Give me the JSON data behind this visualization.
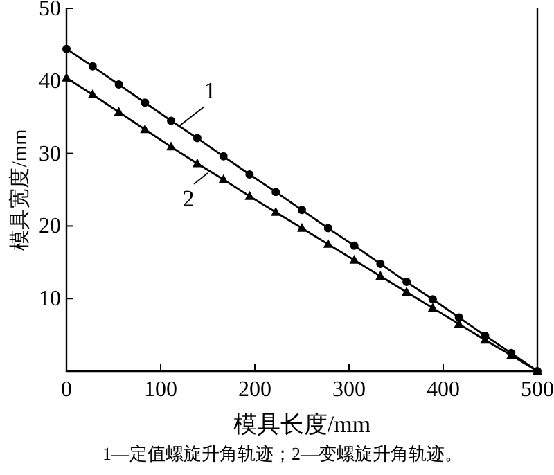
{
  "chart_data": {
    "type": "line",
    "xlabel": "模具长度/mm",
    "ylabel": "模具宽度/mm",
    "x": [
      0,
      27.8,
      55.6,
      83.3,
      111.1,
      138.9,
      166.7,
      194.4,
      222.2,
      250,
      277.8,
      305.6,
      333.3,
      361.1,
      388.9,
      416.7,
      444.4,
      472.2,
      500
    ],
    "series": [
      {
        "color": "#000000",
        "marker": "circle",
        "values": [
          44.4,
          42.0,
          39.5,
          37.0,
          34.5,
          32.1,
          29.6,
          27.1,
          24.7,
          22.2,
          19.7,
          17.3,
          14.8,
          12.3,
          9.9,
          7.4,
          4.9,
          2.5,
          0
        ]
      },
      {
        "color": "#000000",
        "marker": "triangle",
        "values": [
          40.4,
          38.1,
          35.7,
          33.3,
          30.9,
          28.6,
          26.4,
          24.1,
          21.9,
          19.7,
          17.5,
          15.3,
          13.1,
          10.9,
          8.7,
          6.5,
          4.3,
          2.2,
          0
        ]
      }
    ],
    "xlim": [
      0,
      500
    ],
    "xticks": [
      0,
      100,
      200,
      300,
      400,
      500
    ],
    "ylim": [
      0,
      50
    ],
    "yticks": [
      {
        "value": 0,
        "label": null
      },
      10,
      20,
      30,
      40,
      50
    ],
    "grid": false,
    "line_style": "solid",
    "annotations": [
      {
        "text": "1",
        "x": 120,
        "y": 33.8
      },
      {
        "text": "2",
        "x": 150,
        "y": 27.3
      },
      "1—定值螺旋升角轨迹；2—变螺旋升角轨迹。"
    ]
  }
}
